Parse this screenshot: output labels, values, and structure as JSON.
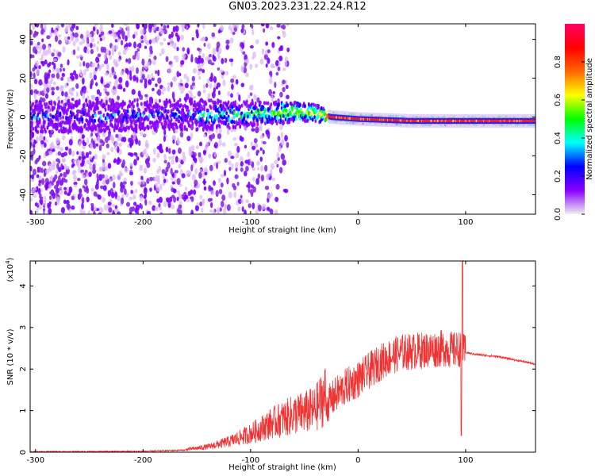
{
  "title": "GN03.2023.231.22.24.R12",
  "chart_data": [
    {
      "type": "heatmap",
      "xlabel": "Height of straight line (km)",
      "ylabel": "Frequency (Hz)",
      "xlim": [
        -305,
        165
      ],
      "ylim": [
        -50,
        48
      ],
      "xticks": [
        -300,
        -200,
        -100,
        0,
        100
      ],
      "yticks": [
        -40,
        -20,
        0,
        20,
        40
      ],
      "grid": false,
      "colorbar": {
        "label": "Normalized spectral amplitude",
        "range": [
          0,
          1
        ],
        "ticks": [
          "0.0",
          "0.2",
          "0.4",
          "0.6",
          "0.8"
        ],
        "colors": [
          "#f0f0f0",
          "#8800ff",
          "#0000ff",
          "#00ffff",
          "#00ff00",
          "#ffff00",
          "#ff6600",
          "#ff0000",
          "#ff0066"
        ]
      },
      "series": [
        {
          "x": [
            -305,
            -200,
            -150,
            -100,
            -60,
            -40,
            -25,
            0,
            50,
            100,
            165
          ],
          "y": [
            0,
            1,
            1,
            1.5,
            2.5,
            2,
            0,
            -1,
            -2,
            -2,
            -2
          ]
        }
      ]
    },
    {
      "type": "line",
      "xlabel": "Height of straight line (km)",
      "ylabel": "SNR (10 * v/v)",
      "yscale_label": "(x10",
      "yscale_exp": "4",
      "yscale_close": ")",
      "xlim": [
        -305,
        165
      ],
      "ylim": [
        0,
        4.6
      ],
      "xticks": [
        -300,
        -200,
        -100,
        0,
        100
      ],
      "yticks": [
        0,
        1,
        2,
        3,
        4
      ],
      "grid": false,
      "color": "#ee3333",
      "series": [
        {
          "x": [
            -305,
            -200,
            -160,
            -140,
            -120,
            -100,
            -80,
            -60,
            -40,
            -30,
            -20,
            -10,
            0,
            10,
            20,
            30,
            40,
            60,
            80,
            90,
            95,
            98,
            100,
            110,
            130,
            150,
            165
          ],
          "y": [
            0.01,
            0.02,
            0.05,
            0.1,
            0.2,
            0.35,
            0.55,
            0.7,
            0.8,
            1.1,
            1.4,
            1.6,
            1.75,
            1.95,
            2.15,
            2.3,
            2.4,
            2.45,
            2.5,
            2.45,
            2.5,
            2.4,
            2.4,
            2.35,
            2.3,
            2.2,
            2.12
          ]
        }
      ]
    }
  ]
}
